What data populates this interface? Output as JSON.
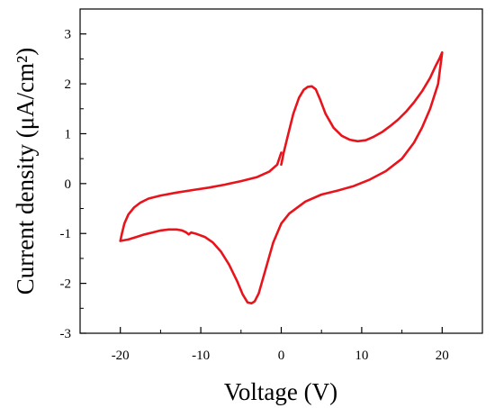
{
  "chart_data": {
    "type": "line",
    "title": "",
    "xlabel": "Voltage (V)",
    "ylabel": "Current density (μA/cm²)",
    "xlim": [
      -25,
      25
    ],
    "ylim": [
      -3,
      3.5
    ],
    "xticks": [
      -20,
      -10,
      0,
      10,
      20
    ],
    "yticks": [
      -3,
      -2,
      -1,
      0,
      1,
      2,
      3
    ],
    "grid": false,
    "legend": "none",
    "series": [
      {
        "color": "#e8141c",
        "x": [
          0.0,
          0.3,
          0.8,
          1.5,
          2.2,
          2.8,
          3.3,
          3.8,
          4.3,
          4.8,
          5.5,
          6.5,
          7.5,
          8.5,
          9.5,
          10.5,
          11.5,
          12.5,
          13.5,
          14.5,
          15.5,
          16.5,
          17.5,
          18.5,
          19.2,
          19.7,
          20.0,
          19.5,
          18.5,
          17.5,
          16.5,
          15.0,
          13.0,
          11.0,
          9.0,
          7.0,
          5.0,
          3.0,
          1.0,
          0.0,
          -1.0,
          -2.0,
          -2.8,
          -3.3,
          -3.7,
          -4.2,
          -4.8,
          -5.5,
          -6.5,
          -7.5,
          -8.5,
          -9.5,
          -10.5,
          -11.2,
          -11.5,
          -11.8,
          -12.3,
          -13.0,
          -14.0,
          -15.0,
          -16.0,
          -17.0,
          -18.0,
          -19.0,
          -20.0,
          -19.8,
          -19.5,
          -19.0,
          -18.3,
          -17.5,
          -16.5,
          -15.0,
          -13.0,
          -11.0,
          -9.0,
          -7.0,
          -5.0,
          -3.0,
          -1.5,
          -0.5,
          0.0
        ],
        "y": [
          0.38,
          0.62,
          0.95,
          1.4,
          1.72,
          1.88,
          1.94,
          1.95,
          1.89,
          1.7,
          1.4,
          1.12,
          0.96,
          0.88,
          0.85,
          0.87,
          0.94,
          1.03,
          1.15,
          1.28,
          1.44,
          1.63,
          1.85,
          2.12,
          2.36,
          2.52,
          2.63,
          2.0,
          1.5,
          1.12,
          0.82,
          0.5,
          0.25,
          0.08,
          -0.05,
          -0.14,
          -0.22,
          -0.36,
          -0.6,
          -0.8,
          -1.18,
          -1.75,
          -2.2,
          -2.36,
          -2.4,
          -2.38,
          -2.22,
          -1.95,
          -1.62,
          -1.36,
          -1.18,
          -1.07,
          -1.01,
          -0.98,
          -1.02,
          -0.98,
          -0.94,
          -0.92,
          -0.92,
          -0.94,
          -0.98,
          -1.02,
          -1.07,
          -1.12,
          -1.15,
          -1.0,
          -0.8,
          -0.62,
          -0.48,
          -0.38,
          -0.3,
          -0.24,
          -0.18,
          -0.13,
          -0.08,
          -0.02,
          0.05,
          0.13,
          0.24,
          0.38,
          0.62
        ]
      }
    ]
  }
}
